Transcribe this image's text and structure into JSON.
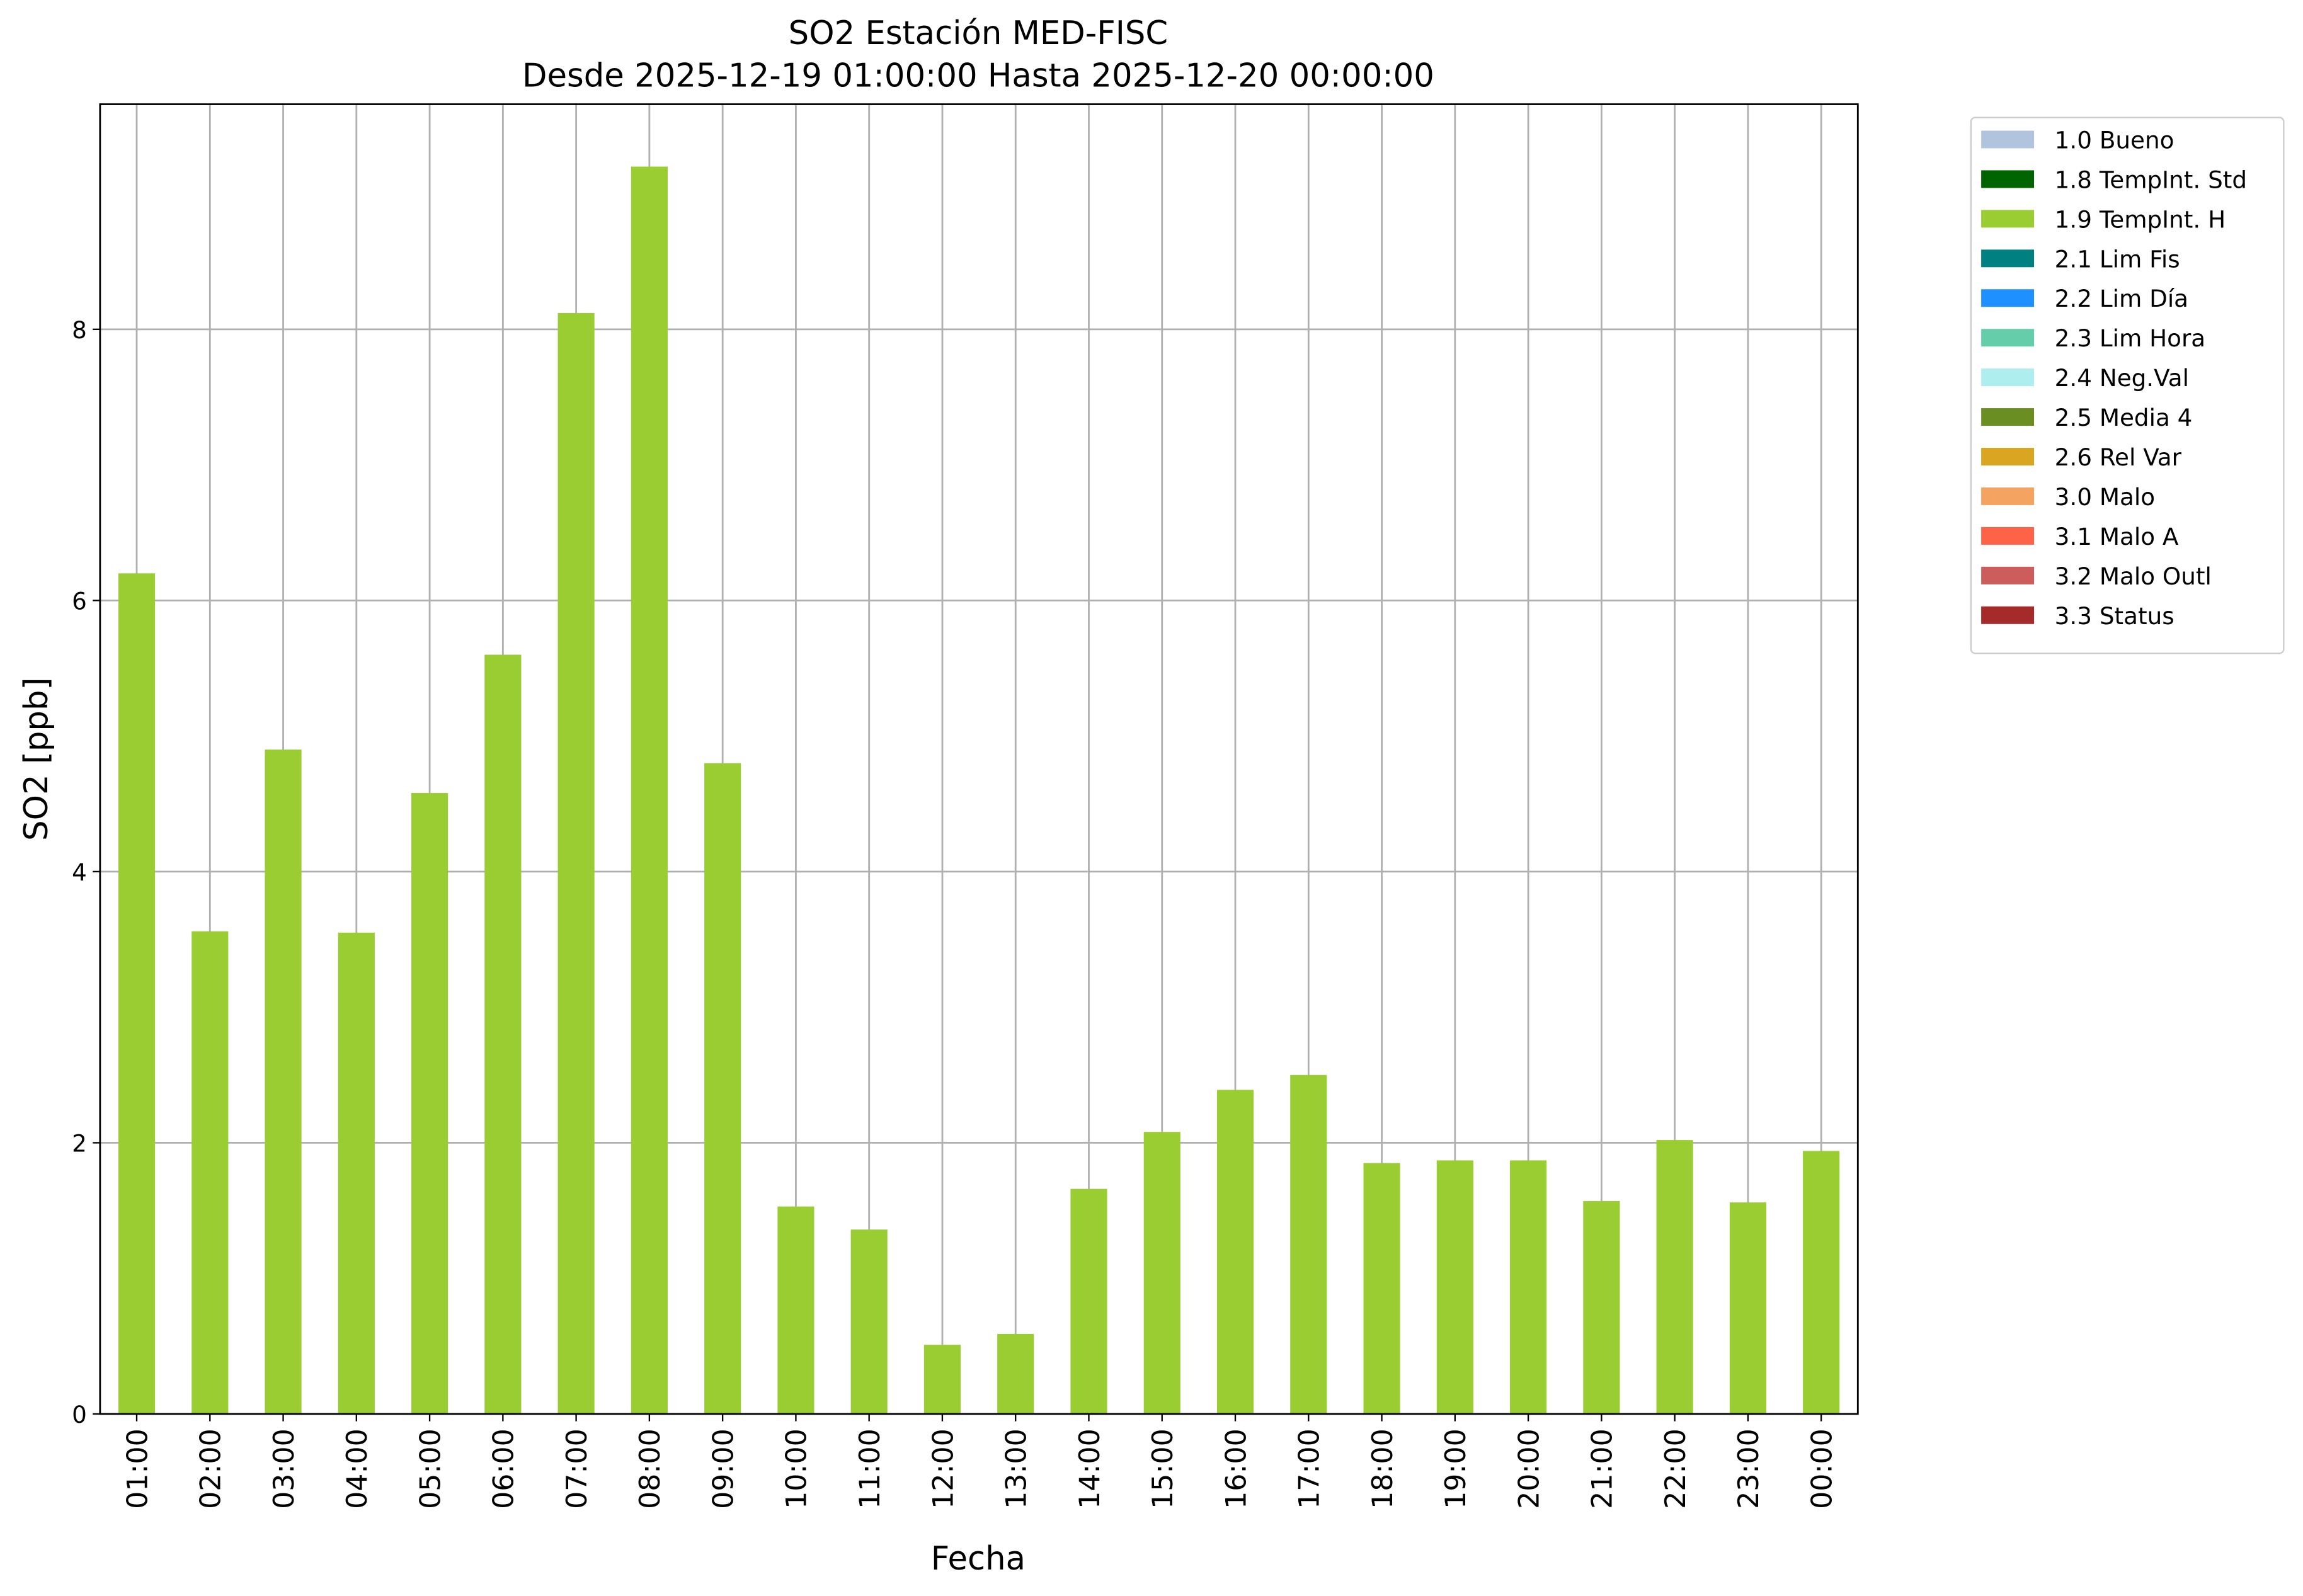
{
  "chart_data": {
    "type": "bar",
    "stacked": true,
    "title": "SO2 Estación MED-FISC",
    "subtitle": "Desde 2025-12-19 01:00:00 Hasta 2025-12-20 00:00:00",
    "x_label": "Fecha",
    "y_label": "SO2 [ppb]",
    "categories": [
      "01:00",
      "02:00",
      "03:00",
      "04:00",
      "05:00",
      "06:00",
      "07:00",
      "08:00",
      "09:00",
      "10:00",
      "11:00",
      "12:00",
      "13:00",
      "14:00",
      "15:00",
      "16:00",
      "17:00",
      "18:00",
      "19:00",
      "20:00",
      "21:00",
      "22:00",
      "23:00",
      "00:00"
    ],
    "series": [
      {
        "name": "1.0 Bueno",
        "color": "#b0c4de",
        "values": [
          0,
          0,
          0,
          0,
          0,
          0,
          0,
          0,
          0,
          0,
          0,
          0,
          0,
          0,
          0,
          0,
          0,
          0,
          0,
          0,
          0,
          0,
          0,
          0
        ]
      },
      {
        "name": "1.8 TempInt. Std",
        "color": "#006400",
        "values": [
          0,
          0,
          0,
          0,
          0,
          0,
          0,
          0,
          0,
          0,
          0,
          0,
          0,
          0,
          0,
          0,
          0,
          0,
          0,
          0,
          0,
          0,
          0,
          0
        ]
      },
      {
        "name": "1.9 TempInt. H",
        "color": "#9acd32",
        "values": [
          6.2,
          3.56,
          4.9,
          3.55,
          4.58,
          5.6,
          8.12,
          9.2,
          4.8,
          1.53,
          1.36,
          0.51,
          0.59,
          1.66,
          2.08,
          2.39,
          2.5,
          1.85,
          1.87,
          1.87,
          1.57,
          2.02,
          1.56,
          1.94
        ]
      },
      {
        "name": "2.1 Lim Fis",
        "color": "#008080",
        "values": [
          0,
          0,
          0,
          0,
          0,
          0,
          0,
          0,
          0,
          0,
          0,
          0,
          0,
          0,
          0,
          0,
          0,
          0,
          0,
          0,
          0,
          0,
          0,
          0
        ]
      },
      {
        "name": "2.2 Lim Día",
        "color": "#1e90ff",
        "values": [
          0,
          0,
          0,
          0,
          0,
          0,
          0,
          0,
          0,
          0,
          0,
          0,
          0,
          0,
          0,
          0,
          0,
          0,
          0,
          0,
          0,
          0,
          0,
          0
        ]
      },
      {
        "name": "2.3 Lim Hora",
        "color": "#66cdaa",
        "values": [
          0,
          0,
          0,
          0,
          0,
          0,
          0,
          0,
          0,
          0,
          0,
          0,
          0,
          0,
          0,
          0,
          0,
          0,
          0,
          0,
          0,
          0,
          0,
          0
        ]
      },
      {
        "name": "2.4 Neg.Val",
        "color": "#afeeee",
        "values": [
          0,
          0,
          0,
          0,
          0,
          0,
          0,
          0,
          0,
          0,
          0,
          0,
          0,
          0,
          0,
          0,
          0,
          0,
          0,
          0,
          0,
          0,
          0,
          0
        ]
      },
      {
        "name": "2.5 Media 4",
        "color": "#6b8e23",
        "values": [
          0,
          0,
          0,
          0,
          0,
          0,
          0,
          0,
          0,
          0,
          0,
          0,
          0,
          0,
          0,
          0,
          0,
          0,
          0,
          0,
          0,
          0,
          0,
          0
        ]
      },
      {
        "name": "2.6 Rel Var",
        "color": "#daa520",
        "values": [
          0,
          0,
          0,
          0,
          0,
          0,
          0,
          0,
          0,
          0,
          0,
          0,
          0,
          0,
          0,
          0,
          0,
          0,
          0,
          0,
          0,
          0,
          0,
          0
        ]
      },
      {
        "name": "3.0 Malo",
        "color": "#f4a460",
        "values": [
          0,
          0,
          0,
          0,
          0,
          0,
          0,
          0,
          0,
          0,
          0,
          0,
          0,
          0,
          0,
          0,
          0,
          0,
          0,
          0,
          0,
          0,
          0,
          0
        ]
      },
      {
        "name": "3.1 Malo A",
        "color": "#ff6347",
        "values": [
          0,
          0,
          0,
          0,
          0,
          0,
          0,
          0,
          0,
          0,
          0,
          0,
          0,
          0,
          0,
          0,
          0,
          0,
          0,
          0,
          0,
          0,
          0,
          0
        ]
      },
      {
        "name": "3.2 Malo Outl",
        "color": "#cd5c5c",
        "values": [
          0,
          0,
          0,
          0,
          0,
          0,
          0,
          0,
          0,
          0,
          0,
          0,
          0,
          0,
          0,
          0,
          0,
          0,
          0,
          0,
          0,
          0,
          0,
          0
        ]
      },
      {
        "name": "3.3 Status",
        "color": "#a52a2a",
        "values": [
          0,
          0,
          0,
          0,
          0,
          0,
          0,
          0,
          0,
          0,
          0,
          0,
          0,
          0,
          0,
          0,
          0,
          0,
          0,
          0,
          0,
          0,
          0,
          0
        ]
      }
    ],
    "ylim": [
      0,
      9.66
    ],
    "yticks": [
      0,
      2,
      4,
      6,
      8
    ],
    "grid": true,
    "legend": "outside right"
  }
}
